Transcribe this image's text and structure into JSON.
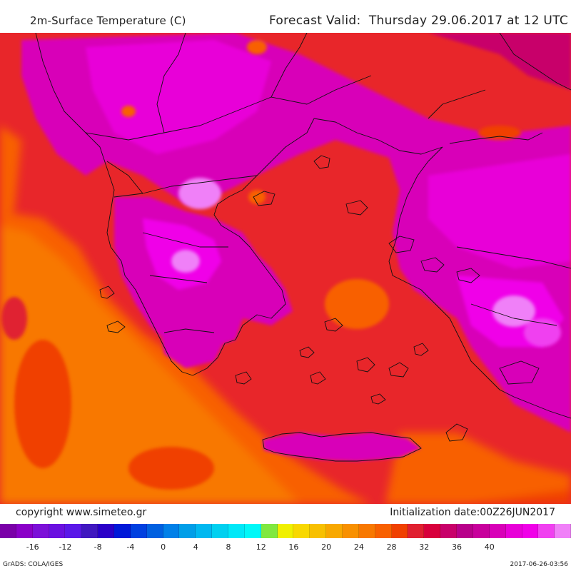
{
  "header": {
    "title": "2m-Surface Temperature (C)",
    "forecast": "Forecast Valid:  Thursday 29.06.2017 at 12 UTC"
  },
  "footer": {
    "copyright": "copyright www.simeteo.gr",
    "initialization": "Initialization date:00Z26JUN2017",
    "credit": "GrADS: COLA/IGES",
    "timestamp": "2017-06-26-03:56"
  },
  "legend": {
    "colors": [
      "#7a00a8",
      "#8a00c8",
      "#7c10d8",
      "#6a10e0",
      "#5a18e8",
      "#4018c0",
      "#2a00c8",
      "#0018d8",
      "#0040e0",
      "#0060e0",
      "#0080e8",
      "#009ee8",
      "#00b8f0",
      "#00d0f0",
      "#00e8f8",
      "#00f8f8",
      "#80e840",
      "#f0f000",
      "#f8d800",
      "#f8c000",
      "#f8a800",
      "#f89000",
      "#f87800",
      "#f86000",
      "#f04000",
      "#e02030",
      "#d8003c",
      "#c8006a",
      "#b8008a",
      "#c8009c",
      "#d800b8",
      "#e800d8",
      "#f000e8",
      "#f040f0",
      "#f080f8"
    ],
    "tick_labels": [
      "-16",
      "-12",
      "-8",
      "-4",
      "0",
      "4",
      "8",
      "12",
      "16",
      "20",
      "24",
      "28",
      "32",
      "36",
      "40"
    ]
  }
}
